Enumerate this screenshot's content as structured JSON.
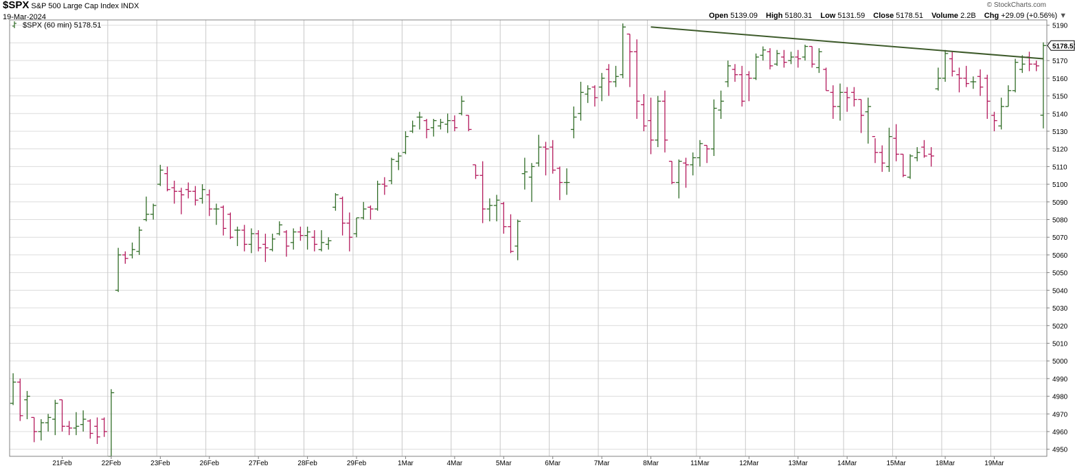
{
  "header": {
    "symbol": "$SPX",
    "name": "S&P 500 Large Cap Index",
    "exchange": "INDX",
    "date": "19-Mar-2024",
    "watermark": "© StockCharts.com",
    "ohlc": {
      "open_label": "Open",
      "open": "5139.09",
      "high_label": "High",
      "high": "5180.31",
      "low_label": "Low",
      "low": "5131.59",
      "close_label": "Close",
      "close": "5178.51",
      "volume_label": "Volume",
      "volume": "2.2B",
      "chg_label": "Chg",
      "chg": "+29.09 (+0.56%)"
    }
  },
  "legend": {
    "text": "$SPX (60 min) 5178.51",
    "icon": "ohlc-bar-icon"
  },
  "colors": {
    "up": "#2f6b25",
    "down": "#b3185b",
    "trendline": "#3d5a2a",
    "grid": "#dcdcdc",
    "axis": "#808080"
  },
  "chart_data": {
    "type": "ohlc",
    "interval": "60 min",
    "ylim": [
      4946,
      5193
    ],
    "y_ticks": [
      4950,
      4960,
      4970,
      4980,
      4990,
      5000,
      5010,
      5020,
      5030,
      5040,
      5050,
      5060,
      5070,
      5080,
      5090,
      5100,
      5110,
      5120,
      5130,
      5140,
      5150,
      5160,
      5170,
      5180,
      5190
    ],
    "last_price_label": "5178.51",
    "last_price": 5178.51,
    "x_ticks": [
      {
        "label": "21Feb",
        "bar": 7.5
      },
      {
        "label": "22Feb",
        "bar": 14.5
      },
      {
        "label": "23Feb",
        "bar": 21.5
      },
      {
        "label": "26Feb",
        "bar": 28.5
      },
      {
        "label": "27Feb",
        "bar": 35.5
      },
      {
        "label": "28Feb",
        "bar": 42.5
      },
      {
        "label": "29Feb",
        "bar": 49.5
      },
      {
        "label": "1Mar",
        "bar": 56.5
      },
      {
        "label": "4Mar",
        "bar": 63.5
      },
      {
        "label": "5Mar",
        "bar": 70.5
      },
      {
        "label": "6Mar",
        "bar": 77.5
      },
      {
        "label": "7Mar",
        "bar": 84.5
      },
      {
        "label": "8Mar",
        "bar": 91.5
      },
      {
        "label": "11Mar",
        "bar": 98.5
      },
      {
        "label": "12Mar",
        "bar": 105.5
      },
      {
        "label": "13Mar",
        "bar": 112.5
      },
      {
        "label": "14Mar",
        "bar": 119.5
      },
      {
        "label": "15Mar",
        "bar": 126.5
      },
      {
        "label": "18Mar",
        "bar": 133.5
      },
      {
        "label": "19Mar",
        "bar": 140.5
      }
    ],
    "day_separators": [
      14,
      21,
      28,
      35,
      42,
      49,
      56,
      63,
      70,
      77,
      84,
      91,
      98,
      105,
      112,
      119,
      126,
      133,
      140
    ],
    "trendline": [
      {
        "bar": 91.5,
        "value": 5189
      },
      {
        "bar": 147.5,
        "value": 5171
      }
    ],
    "bars": [
      [
        4976,
        4993,
        4975,
        4988
      ],
      [
        4988,
        4990,
        4966,
        4969
      ],
      [
        4978,
        4983,
        4967,
        4980
      ],
      [
        4968,
        4968,
        4954,
        4960
      ],
      [
        4960,
        4967,
        4955,
        4965
      ],
      [
        4965,
        4970,
        4960,
        4968
      ],
      [
        4967,
        4978,
        4958,
        4976
      ],
      [
        4978,
        4978,
        4960,
        4963
      ],
      [
        4963,
        4966,
        4958,
        4962
      ],
      [
        4962,
        4971,
        4958,
        4963
      ],
      [
        4964,
        4972,
        4960,
        4967
      ],
      [
        4966,
        4967,
        4956,
        4959
      ],
      [
        4963,
        4968,
        4953,
        4957
      ],
      [
        4967,
        4968,
        4957,
        4960
      ],
      [
        4946,
        4984,
        4946,
        4982
      ],
      [
        5040,
        5064,
        5039,
        5060
      ],
      [
        5060,
        5062,
        5055,
        5058
      ],
      [
        5060,
        5067,
        5058,
        5063
      ],
      [
        5062,
        5076,
        5060,
        5074
      ],
      [
        5080,
        5093,
        5079,
        5083
      ],
      [
        5083,
        5089,
        5080,
        5088
      ],
      [
        5100,
        5111,
        5099,
        5108
      ],
      [
        5106,
        5110,
        5096,
        5097
      ],
      [
        5098,
        5102,
        5089,
        5096
      ],
      [
        5096,
        5098,
        5083,
        5094
      ],
      [
        5097,
        5101,
        5092,
        5096
      ],
      [
        5096,
        5099,
        5088,
        5091
      ],
      [
        5092,
        5100,
        5089,
        5097
      ],
      [
        5094,
        5097,
        5082,
        5086
      ],
      [
        5086,
        5089,
        5077,
        5086
      ],
      [
        5087,
        5088,
        5071,
        5075
      ],
      [
        5083,
        5084,
        5069,
        5070
      ],
      [
        5074,
        5076,
        5065,
        5074
      ],
      [
        5074,
        5077,
        5062,
        5066
      ],
      [
        5066,
        5075,
        5061,
        5072
      ],
      [
        5072,
        5074,
        5062,
        5064
      ],
      [
        5066,
        5072,
        5056,
        5064
      ],
      [
        5063,
        5072,
        5062,
        5069
      ],
      [
        5072,
        5079,
        5071,
        5077
      ],
      [
        5073,
        5074,
        5059,
        5065
      ],
      [
        5067,
        5075,
        5063,
        5073
      ],
      [
        5073,
        5076,
        5068,
        5071
      ],
      [
        5071,
        5076,
        5063,
        5073
      ],
      [
        5070,
        5074,
        5062,
        5066
      ],
      [
        5063,
        5074,
        5062,
        5067
      ],
      [
        5066,
        5070,
        5063,
        5068
      ],
      [
        5087,
        5095,
        5085,
        5094
      ],
      [
        5092,
        5093,
        5071,
        5078
      ],
      [
        5078,
        5084,
        5062,
        5070
      ],
      [
        5072,
        5081,
        5070,
        5081
      ],
      [
        5081,
        5090,
        5080,
        5086
      ],
      [
        5087,
        5088,
        5080,
        5086
      ],
      [
        5086,
        5102,
        5085,
        5100
      ],
      [
        5100,
        5104,
        5094,
        5099
      ],
      [
        5102,
        5115,
        5100,
        5114
      ],
      [
        5113,
        5118,
        5108,
        5116
      ],
      [
        5118,
        5130,
        5117,
        5127
      ],
      [
        5130,
        5136,
        5129,
        5133
      ],
      [
        5138,
        5141,
        5131,
        5138
      ],
      [
        5136,
        5137,
        5126,
        5131
      ],
      [
        5132,
        5137,
        5127,
        5136
      ],
      [
        5133,
        5137,
        5131,
        5135
      ],
      [
        5134,
        5140,
        5129,
        5136
      ],
      [
        5136,
        5139,
        5130,
        5132
      ],
      [
        5140,
        5150,
        5139,
        5147
      ],
      [
        5139,
        5139,
        5130,
        5131
      ],
      [
        5111,
        5111,
        5103,
        5105
      ],
      [
        5105,
        5113,
        5078,
        5086
      ],
      [
        5086,
        5092,
        5079,
        5088
      ],
      [
        5088,
        5094,
        5079,
        5091
      ],
      [
        5089,
        5090,
        5072,
        5076
      ],
      [
        5076,
        5083,
        5061,
        5062
      ],
      [
        5065,
        5080,
        5057,
        5079
      ],
      [
        5106,
        5115,
        5097,
        5107
      ],
      [
        5104,
        5112,
        5090,
        5110
      ],
      [
        5112,
        5128,
        5110,
        5121
      ],
      [
        5121,
        5124,
        5105,
        5120
      ],
      [
        5121,
        5125,
        5106,
        5108
      ],
      [
        5109,
        5110,
        5091,
        5101
      ],
      [
        5101,
        5109,
        5094,
        5101
      ],
      [
        5131,
        5144,
        5126,
        5138
      ],
      [
        5140,
        5158,
        5136,
        5152
      ],
      [
        5151,
        5156,
        5146,
        5154
      ],
      [
        5155,
        5156,
        5144,
        5149
      ],
      [
        5155,
        5163,
        5147,
        5160
      ],
      [
        5165,
        5168,
        5150,
        5158
      ],
      [
        5158,
        5167,
        5155,
        5161
      ],
      [
        5162,
        5191,
        5160,
        5189
      ],
      [
        5185,
        5185,
        5155,
        5175
      ],
      [
        5175,
        5182,
        5137,
        5147
      ],
      [
        5145,
        5151,
        5130,
        5133
      ],
      [
        5136,
        5149,
        5117,
        5125
      ],
      [
        5125,
        5150,
        5121,
        5147
      ],
      [
        5147,
        5153,
        5118,
        5125
      ],
      [
        5113,
        5113,
        5100,
        5101
      ],
      [
        5101,
        5114,
        5092,
        5113
      ],
      [
        5112,
        5115,
        5098,
        5111
      ],
      [
        5111,
        5118,
        5105,
        5115
      ],
      [
        5115,
        5125,
        5110,
        5123
      ],
      [
        5122,
        5122,
        5112,
        5120
      ],
      [
        5120,
        5148,
        5116,
        5143
      ],
      [
        5142,
        5153,
        5137,
        5147
      ],
      [
        5158,
        5170,
        5155,
        5167
      ],
      [
        5165,
        5168,
        5158,
        5162
      ],
      [
        5162,
        5167,
        5144,
        5147
      ],
      [
        5162,
        5164,
        5147,
        5160
      ],
      [
        5160,
        5174,
        5159,
        5172
      ],
      [
        5173,
        5178,
        5170,
        5176
      ],
      [
        5175,
        5177,
        5165,
        5167
      ],
      [
        5168,
        5176,
        5167,
        5174
      ],
      [
        5172,
        5176,
        5166,
        5169
      ],
      [
        5170,
        5175,
        5168,
        5172
      ],
      [
        5172,
        5176,
        5166,
        5171
      ],
      [
        5172,
        5179,
        5170,
        5178
      ],
      [
        5178,
        5178,
        5166,
        5168
      ],
      [
        5166,
        5177,
        5163,
        5175
      ],
      [
        5165,
        5166,
        5153,
        5153
      ],
      [
        5152,
        5156,
        5137,
        5144
      ],
      [
        5144,
        5157,
        5136,
        5152
      ],
      [
        5152,
        5155,
        5141,
        5149
      ],
      [
        5152,
        5155,
        5144,
        5148
      ],
      [
        5148,
        5148,
        5129,
        5139
      ],
      [
        5141,
        5149,
        5123,
        5144
      ],
      [
        5127,
        5126,
        5112,
        5118
      ],
      [
        5118,
        5122,
        5107,
        5112
      ],
      [
        5110,
        5132,
        5107,
        5127
      ],
      [
        5126,
        5134,
        5113,
        5117
      ],
      [
        5117,
        5117,
        5104,
        5105
      ],
      [
        5104,
        5117,
        5103,
        5116
      ],
      [
        5115,
        5121,
        5113,
        5118
      ],
      [
        5121,
        5125,
        5115,
        5116
      ],
      [
        5117,
        5121,
        5110,
        5116
      ],
      [
        5154,
        5166,
        5153,
        5160
      ],
      [
        5160,
        5176,
        5158,
        5174
      ],
      [
        5171,
        5175,
        5161,
        5164
      ],
      [
        5162,
        5166,
        5152,
        5160
      ],
      [
        5160,
        5167,
        5155,
        5157
      ],
      [
        5158,
        5161,
        5154,
        5158
      ],
      [
        5161,
        5165,
        5150,
        5155
      ],
      [
        5160,
        5162,
        5137,
        5147
      ],
      [
        5139,
        5141,
        5130,
        5136
      ],
      [
        5133,
        5149,
        5131,
        5144
      ],
      [
        5144,
        5156,
        5144,
        5153
      ],
      [
        5153,
        5171,
        5152,
        5169
      ],
      [
        5165,
        5173,
        5163,
        5168
      ],
      [
        5172,
        5175,
        5164,
        5168
      ],
      [
        5168,
        5170,
        5164,
        5167
      ],
      [
        5139.09,
        5180.31,
        5131.59,
        5178.51
      ]
    ]
  }
}
